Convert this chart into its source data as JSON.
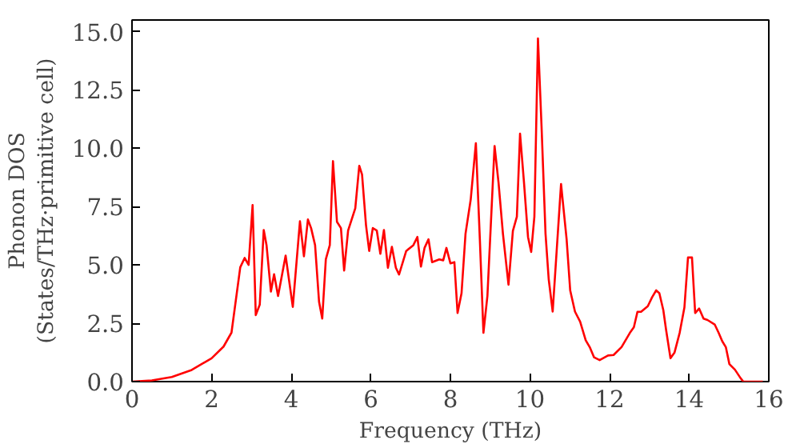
{
  "chart_data": {
    "type": "line",
    "xlabel": "Frequency (THz)",
    "ylabel": "Phonon DOS\n(States/THz·primitive cell)",
    "xlim": [
      0,
      16
    ],
    "ylim": [
      0,
      15.5
    ],
    "xticks": [
      0,
      2,
      4,
      6,
      8,
      10,
      12,
      14,
      16
    ],
    "yticks": [
      {
        "value": 0,
        "label": "0.0"
      },
      {
        "value": 2.5,
        "label": "2.5"
      },
      {
        "value": 5,
        "label": "5.0"
      },
      {
        "value": 7.5,
        "label": "7.5"
      },
      {
        "value": 10,
        "label": "10.0"
      },
      {
        "value": 12.5,
        "label": "12.5"
      },
      {
        "value": 15,
        "label": "15.0"
      }
    ],
    "grid": false,
    "marker": "none",
    "line_style": "solid",
    "series": [
      {
        "color": "#ff0000",
        "x": [
          0,
          0.5,
          1,
          1.5,
          2,
          2.3,
          2.5,
          2.72,
          2.83,
          2.93,
          3.03,
          3.11,
          3.21,
          3.31,
          3.38,
          3.49,
          3.57,
          3.67,
          3.86,
          4.04,
          4.22,
          4.32,
          4.42,
          4.5,
          4.6,
          4.7,
          4.78,
          4.87,
          4.97,
          5.05,
          5.15,
          5.25,
          5.33,
          5.43,
          5.61,
          5.71,
          5.78,
          5.88,
          5.96,
          6.05,
          6.15,
          6.24,
          6.33,
          6.43,
          6.53,
          6.63,
          6.71,
          6.89,
          7.07,
          7.17,
          7.26,
          7.35,
          7.45,
          7.54,
          7.72,
          7.82,
          7.9,
          8.0,
          8.1,
          8.18,
          8.28,
          8.38,
          8.51,
          8.64,
          8.74,
          8.83,
          8.93,
          9.11,
          9.21,
          9.32,
          9.46,
          9.57,
          9.67,
          9.75,
          9.85,
          9.95,
          10.03,
          10.11,
          10.2,
          10.29,
          10.39,
          10.47,
          10.57,
          10.78,
          10.92,
          11.01,
          11.13,
          11.26,
          11.4,
          11.5,
          11.61,
          11.75,
          11.96,
          12.1,
          12.3,
          12.51,
          12.61,
          12.7,
          12.79,
          12.96,
          13.07,
          13.17,
          13.25,
          13.35,
          13.42,
          13.53,
          13.63,
          13.76,
          13.88,
          13.97,
          14.07,
          14.15,
          14.25,
          14.36,
          14.46,
          14.64,
          14.74,
          14.83,
          14.92,
          15.01,
          15.15,
          15.29,
          15.36,
          15.85
        ],
        "values": [
          0,
          0.05,
          0.2,
          0.5,
          1.0,
          1.5,
          2.1,
          4.9,
          5.3,
          5.0,
          7.57,
          2.85,
          3.3,
          6.5,
          5.85,
          3.86,
          4.6,
          3.67,
          5.4,
          3.2,
          6.87,
          5.37,
          6.95,
          6.58,
          5.85,
          3.42,
          2.7,
          5.24,
          5.85,
          9.45,
          6.85,
          6.58,
          4.76,
          6.48,
          7.43,
          9.25,
          8.88,
          6.7,
          5.6,
          6.58,
          6.48,
          5.48,
          6.5,
          4.88,
          5.78,
          4.88,
          4.59,
          5.6,
          5.85,
          6.2,
          4.93,
          5.73,
          6.1,
          5.12,
          5.24,
          5.2,
          5.73,
          5.07,
          5.12,
          2.94,
          3.79,
          6.34,
          7.8,
          10.22,
          6.1,
          2.09,
          3.67,
          10.1,
          8.52,
          6.34,
          4.15,
          6.46,
          7.07,
          10.63,
          8.52,
          6.2,
          5.56,
          7.07,
          14.71,
          10.95,
          6.34,
          4.39,
          3.0,
          8.47,
          6.1,
          3.91,
          3.0,
          2.57,
          1.77,
          1.48,
          1.04,
          0.92,
          1.12,
          1.14,
          1.48,
          2.09,
          2.33,
          2.99,
          2.99,
          3.23,
          3.62,
          3.91,
          3.79,
          3.06,
          2.21,
          1.0,
          1.24,
          2.09,
          3.18,
          5.32,
          5.32,
          2.94,
          3.13,
          2.7,
          2.64,
          2.45,
          2.09,
          1.73,
          1.48,
          0.75,
          0.51,
          0.15,
          0,
          0
        ]
      }
    ]
  }
}
